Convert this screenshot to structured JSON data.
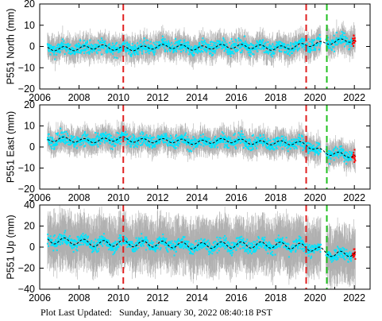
{
  "footer": {
    "label": "Plot Last Updated:",
    "timestamp": "Sunday, January 30, 2022 08:40:18 PST"
  },
  "colors": {
    "data_points": "#00e5ff",
    "error_bars": "#b0b0b0",
    "model_line": "#000000",
    "recent_points": "#ff0000",
    "offset_red": "#e02020",
    "offset_green": "#20c020"
  },
  "chart_data": [
    {
      "type": "scatter",
      "ylabel": "P551 North (mm)",
      "xlim": [
        2006,
        2022.8
      ],
      "ylim": [
        -20,
        20
      ],
      "xticks": [
        "2006",
        "2008",
        "2010",
        "2012",
        "2014",
        "2016",
        "2018",
        "2020",
        "2022"
      ],
      "yticks": [
        "20",
        "10",
        "0",
        "−10",
        "−20"
      ],
      "ytick_values": [
        20,
        10,
        0,
        -10,
        -20
      ],
      "series": [
        {
          "x": [
            2006.4,
            2007.0,
            2008.0,
            2009.0,
            2010.0,
            2011.0,
            2012.0,
            2013.0,
            2014.0,
            2015.0,
            2016.0,
            2017.0,
            2018.0,
            2019.0,
            2019.6,
            2020.0,
            2020.7,
            2021.0,
            2021.5,
            2022.0
          ],
          "y": [
            -1,
            -1,
            -1,
            0,
            -1,
            -1,
            0,
            0,
            -1,
            0,
            0,
            0,
            -1,
            0,
            1,
            1,
            2,
            2,
            3,
            3
          ]
        }
      ],
      "offset_lines": [
        {
          "x": 2010.25,
          "color": "red"
        },
        {
          "x": 2019.55,
          "color": "red"
        },
        {
          "x": 2020.6,
          "color": "green"
        }
      ]
    },
    {
      "type": "scatter",
      "ylabel": "P551 East (mm)",
      "xlim": [
        2006,
        2022.8
      ],
      "ylim": [
        -20,
        20
      ],
      "xticks": [
        "2006",
        "2008",
        "2010",
        "2012",
        "2014",
        "2016",
        "2018",
        "2020",
        "2022"
      ],
      "yticks": [
        "20",
        "10",
        "0",
        "−10",
        "−20"
      ],
      "ytick_values": [
        20,
        10,
        0,
        -10,
        -20
      ],
      "series": [
        {
          "x": [
            2006.4,
            2007.0,
            2008.0,
            2009.0,
            2010.0,
            2011.0,
            2012.0,
            2013.0,
            2014.0,
            2015.0,
            2016.0,
            2017.0,
            2018.0,
            2019.0,
            2019.6,
            2020.0,
            2020.7,
            2021.0,
            2021.5,
            2022.0
          ],
          "y": [
            3,
            4,
            3,
            3,
            4,
            3,
            3,
            3,
            2,
            3,
            3,
            2,
            2,
            2,
            1,
            -1,
            -3,
            -3,
            -4,
            -4
          ]
        }
      ],
      "offset_lines": [
        {
          "x": 2010.25,
          "color": "red"
        },
        {
          "x": 2019.55,
          "color": "red"
        },
        {
          "x": 2020.6,
          "color": "green"
        }
      ]
    },
    {
      "type": "scatter",
      "ylabel": "P551 Up (mm)",
      "xlim": [
        2006,
        2022.8
      ],
      "ylim": [
        -40,
        40
      ],
      "xticks": [
        "2006",
        "2008",
        "2010",
        "2012",
        "2014",
        "2016",
        "2018",
        "2020",
        "2022"
      ],
      "yticks": [
        "40",
        "20",
        "0",
        "−20",
        "−40"
      ],
      "ytick_values": [
        40,
        20,
        0,
        -20,
        -40
      ],
      "series": [
        {
          "x": [
            2006.4,
            2007.0,
            2008.0,
            2009.0,
            2010.0,
            2011.0,
            2012.0,
            2013.0,
            2014.0,
            2015.0,
            2016.0,
            2017.0,
            2018.0,
            2019.0,
            2019.6,
            2020.0,
            2020.7,
            2021.0,
            2021.5,
            2022.0
          ],
          "y": [
            6,
            6,
            5,
            3,
            4,
            3,
            3,
            2,
            1,
            2,
            2,
            2,
            2,
            1,
            0,
            -2,
            -5,
            -8,
            -6,
            -6
          ]
        }
      ],
      "offset_lines": [
        {
          "x": 2010.25,
          "color": "red"
        },
        {
          "x": 2019.55,
          "color": "red"
        },
        {
          "x": 2020.6,
          "color": "green"
        }
      ]
    }
  ]
}
